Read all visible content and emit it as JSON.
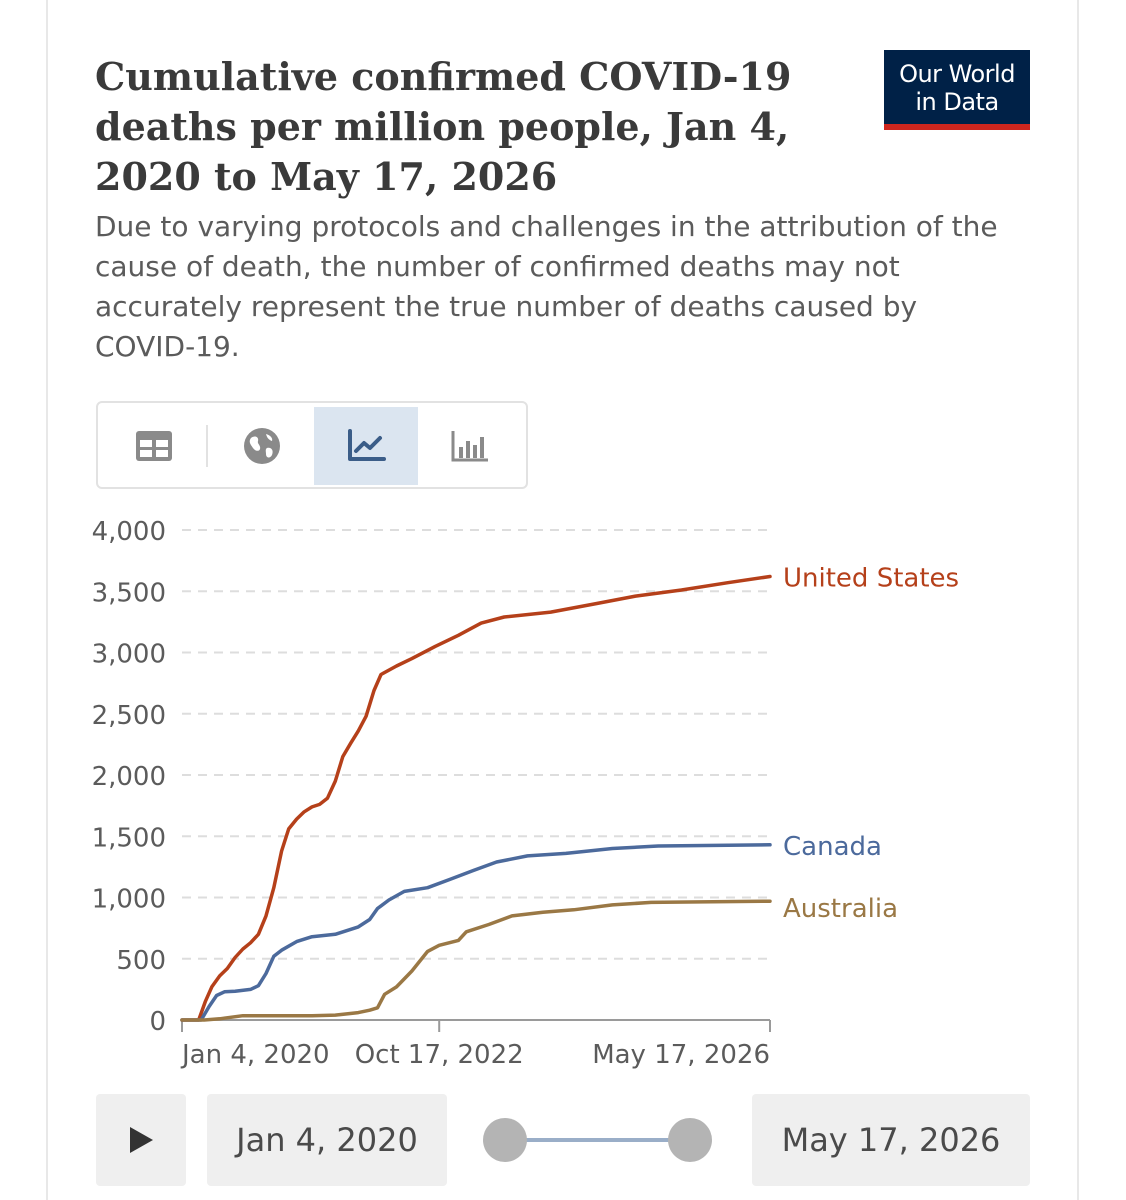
{
  "header": {
    "title": "Cumulative confirmed COVID-19 deaths per million people, Jan 4, 2020 to May 17, 2026",
    "subtitle": "Due to varying protocols and challenges in the attribution of the cause of death, the number of confirmed deaths may not accurately represent the true number of deaths caused by COVID-19.",
    "logo_line1": "Our World",
    "logo_line2": "in Data"
  },
  "tabs": [
    {
      "name": "table-tab",
      "icon": "table-icon",
      "active": false
    },
    {
      "name": "map-tab",
      "icon": "globe-icon",
      "active": false
    },
    {
      "name": "line-chart-tab",
      "icon": "line-chart-icon",
      "active": true
    },
    {
      "name": "bar-chart-tab",
      "icon": "bar-chart-icon",
      "active": false
    }
  ],
  "controls": {
    "play_icon": "play-icon",
    "start_date": "Jan 4, 2020",
    "end_date": "May 17, 2026"
  },
  "colors": {
    "united_states": "#b5401a",
    "canada": "#4c6a9c",
    "australia": "#9a7845",
    "axis_text": "#5b5b5b",
    "grid": "#dddddd",
    "active_tab": "#dbe5f0",
    "logo_bg": "#002147",
    "logo_accent": "#ce261e"
  },
  "chart_data": {
    "type": "line",
    "grid": true,
    "grid_style": "dashed horizontal",
    "legend": "inline labels at line ends (right)",
    "ylim": [
      0,
      4000
    ],
    "yticks": [
      0,
      500,
      1000,
      1500,
      2000,
      2500,
      3000,
      3500,
      4000
    ],
    "ytick_labels": [
      "0",
      "500",
      "1,000",
      "1,500",
      "2,000",
      "2,500",
      "3,000",
      "3,500",
      "4,000"
    ],
    "xlim": [
      "2020-01-04",
      "2026-05-17"
    ],
    "xticks": [
      "2020-01-04",
      "2022-10-17",
      "2026-05-17"
    ],
    "xtick_labels": [
      "Jan 4, 2020",
      "Oct 17, 2022",
      "May 17, 2026"
    ],
    "series": [
      {
        "name": "United States",
        "color_key": "united_states",
        "points": [
          [
            "2020-01-04",
            0
          ],
          [
            "2020-03-10",
            0
          ],
          [
            "2020-04-05",
            150
          ],
          [
            "2020-05-01",
            270
          ],
          [
            "2020-06-01",
            360
          ],
          [
            "2020-07-01",
            420
          ],
          [
            "2020-08-01",
            510
          ],
          [
            "2020-09-01",
            580
          ],
          [
            "2020-10-01",
            630
          ],
          [
            "2020-11-01",
            700
          ],
          [
            "2020-12-01",
            850
          ],
          [
            "2021-01-01",
            1080
          ],
          [
            "2021-02-01",
            1380
          ],
          [
            "2021-03-01",
            1560
          ],
          [
            "2021-04-01",
            1640
          ],
          [
            "2021-05-01",
            1700
          ],
          [
            "2021-06-01",
            1740
          ],
          [
            "2021-07-01",
            1760
          ],
          [
            "2021-08-01",
            1810
          ],
          [
            "2021-09-01",
            1950
          ],
          [
            "2021-10-01",
            2150
          ],
          [
            "2021-11-01",
            2260
          ],
          [
            "2021-12-01",
            2360
          ],
          [
            "2022-01-01",
            2480
          ],
          [
            "2022-02-01",
            2690
          ],
          [
            "2022-03-01",
            2820
          ],
          [
            "2022-05-01",
            2890
          ],
          [
            "2022-07-01",
            2950
          ],
          [
            "2022-10-01",
            3050
          ],
          [
            "2023-01-01",
            3140
          ],
          [
            "2023-04-01",
            3240
          ],
          [
            "2023-07-01",
            3290
          ],
          [
            "2024-01-01",
            3330
          ],
          [
            "2024-07-01",
            3400
          ],
          [
            "2024-12-01",
            3460
          ],
          [
            "2025-06-01",
            3510
          ],
          [
            "2025-12-01",
            3570
          ],
          [
            "2026-05-17",
            3620
          ]
        ]
      },
      {
        "name": "Canada",
        "color_key": "canada",
        "points": [
          [
            "2020-01-04",
            0
          ],
          [
            "2020-03-20",
            0
          ],
          [
            "2020-04-20",
            110
          ],
          [
            "2020-05-20",
            200
          ],
          [
            "2020-06-20",
            230
          ],
          [
            "2020-08-01",
            235
          ],
          [
            "2020-10-01",
            250
          ],
          [
            "2020-11-01",
            280
          ],
          [
            "2020-12-01",
            380
          ],
          [
            "2021-01-01",
            520
          ],
          [
            "2021-02-01",
            570
          ],
          [
            "2021-04-01",
            640
          ],
          [
            "2021-06-01",
            680
          ],
          [
            "2021-09-01",
            700
          ],
          [
            "2021-12-01",
            760
          ],
          [
            "2022-01-15",
            820
          ],
          [
            "2022-02-15",
            910
          ],
          [
            "2022-04-01",
            980
          ],
          [
            "2022-06-01",
            1050
          ],
          [
            "2022-09-01",
            1080
          ],
          [
            "2022-12-01",
            1150
          ],
          [
            "2023-03-01",
            1220
          ],
          [
            "2023-06-01",
            1290
          ],
          [
            "2023-10-01",
            1340
          ],
          [
            "2024-03-01",
            1360
          ],
          [
            "2024-09-01",
            1400
          ],
          [
            "2025-03-01",
            1420
          ],
          [
            "2026-05-17",
            1430
          ]
        ]
      },
      {
        "name": "Australia",
        "color_key": "australia",
        "points": [
          [
            "2020-01-04",
            0
          ],
          [
            "2020-04-01",
            0
          ],
          [
            "2020-06-01",
            10
          ],
          [
            "2020-09-01",
            35
          ],
          [
            "2021-06-01",
            35
          ],
          [
            "2021-09-01",
            40
          ],
          [
            "2021-12-01",
            60
          ],
          [
            "2022-01-15",
            80
          ],
          [
            "2022-02-15",
            100
          ],
          [
            "2022-03-15",
            210
          ],
          [
            "2022-05-01",
            270
          ],
          [
            "2022-07-01",
            400
          ],
          [
            "2022-09-01",
            560
          ],
          [
            "2022-10-17",
            610
          ],
          [
            "2023-01-01",
            650
          ],
          [
            "2023-02-01",
            720
          ],
          [
            "2023-05-01",
            780
          ],
          [
            "2023-08-01",
            850
          ],
          [
            "2023-12-01",
            880
          ],
          [
            "2024-04-01",
            900
          ],
          [
            "2024-09-01",
            940
          ],
          [
            "2025-02-01",
            960
          ],
          [
            "2026-05-17",
            970
          ]
        ]
      }
    ]
  }
}
